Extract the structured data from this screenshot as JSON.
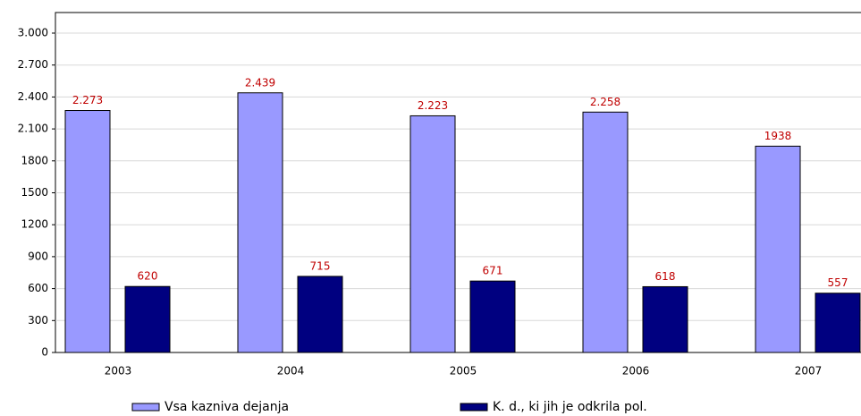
{
  "chart_data": {
    "type": "bar",
    "categories": [
      "2003",
      "2004",
      "2005",
      "2006",
      "2007"
    ],
    "series": [
      {
        "name": "Vsa kazniva dejanja",
        "color": "#9999ff",
        "values": [
          2273,
          2439,
          2223,
          2258,
          1938
        ],
        "value_labels": [
          "2.273",
          "2.439",
          "2.223",
          "2.258",
          "1938"
        ]
      },
      {
        "name": "K. d., ki jih je odkrila pol.",
        "color": "#000080",
        "values": [
          620,
          715,
          671,
          618,
          557
        ]
      }
    ],
    "ylim": [
      0,
      3000
    ],
    "yticks": [
      0,
      300,
      600,
      900,
      1200,
      1500,
      1800,
      {
        "value": 2100,
        "label": "2.100"
      },
      {
        "value": 2400,
        "label": "2.400"
      },
      {
        "value": 2700,
        "label": "2.700"
      },
      {
        "value": 3000,
        "label": "3.000"
      }
    ],
    "grid": true,
    "legend": "bottom"
  }
}
